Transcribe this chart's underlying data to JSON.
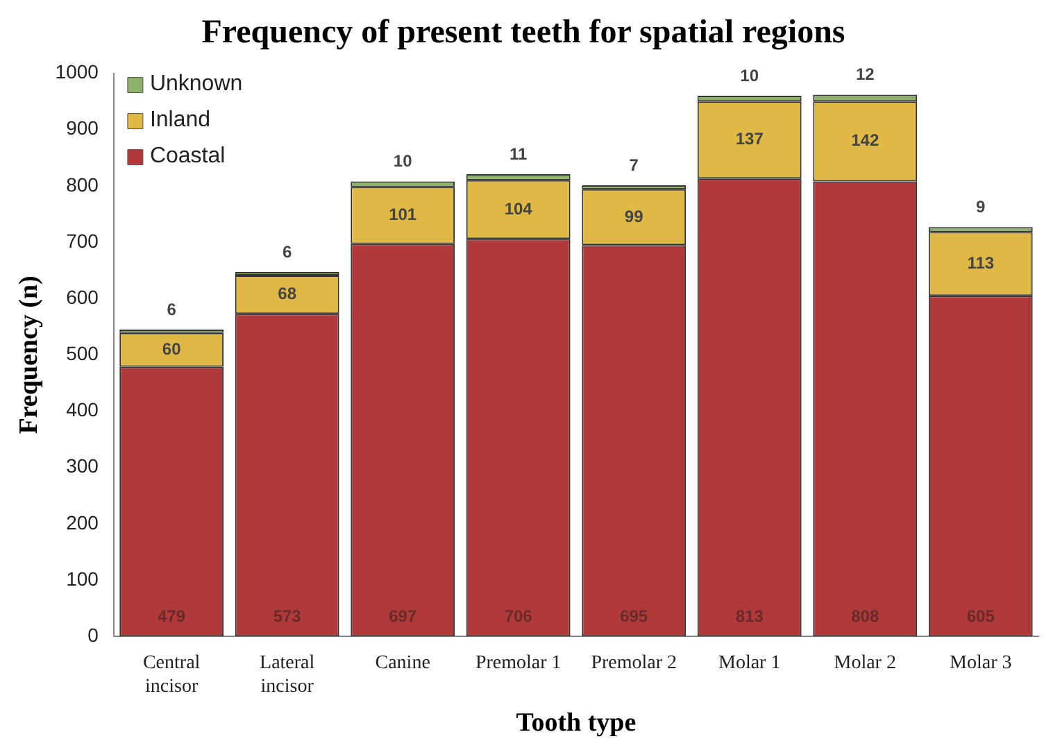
{
  "chart_data": {
    "type": "bar",
    "title": "Frequency of present teeth for spatial regions",
    "xlabel": "Tooth type",
    "ylabel": "Frequency (n)",
    "categories": [
      "Central\nincisor",
      "Lateral\nincisor",
      "Canine",
      "Premolar 1",
      "Premolar 2",
      "Molar 1",
      "Molar 2",
      "Molar 3"
    ],
    "series": [
      {
        "name": "Coastal",
        "color": "#b03a3a",
        "values": [
          479,
          573,
          697,
          706,
          695,
          813,
          808,
          605
        ]
      },
      {
        "name": "Inland",
        "color": "#e0b845",
        "values": [
          60,
          68,
          101,
          104,
          99,
          137,
          142,
          113
        ]
      },
      {
        "name": "Unknown",
        "color": "#8db36a",
        "values": [
          6,
          6,
          10,
          11,
          7,
          10,
          12,
          9
        ]
      }
    ],
    "stacked": true,
    "ylim": [
      0,
      1000
    ],
    "yticks": [
      0,
      100,
      200,
      300,
      400,
      500,
      600,
      700,
      800,
      900,
      1000
    ],
    "grid": false,
    "legend": "top left",
    "data_labels": true
  }
}
